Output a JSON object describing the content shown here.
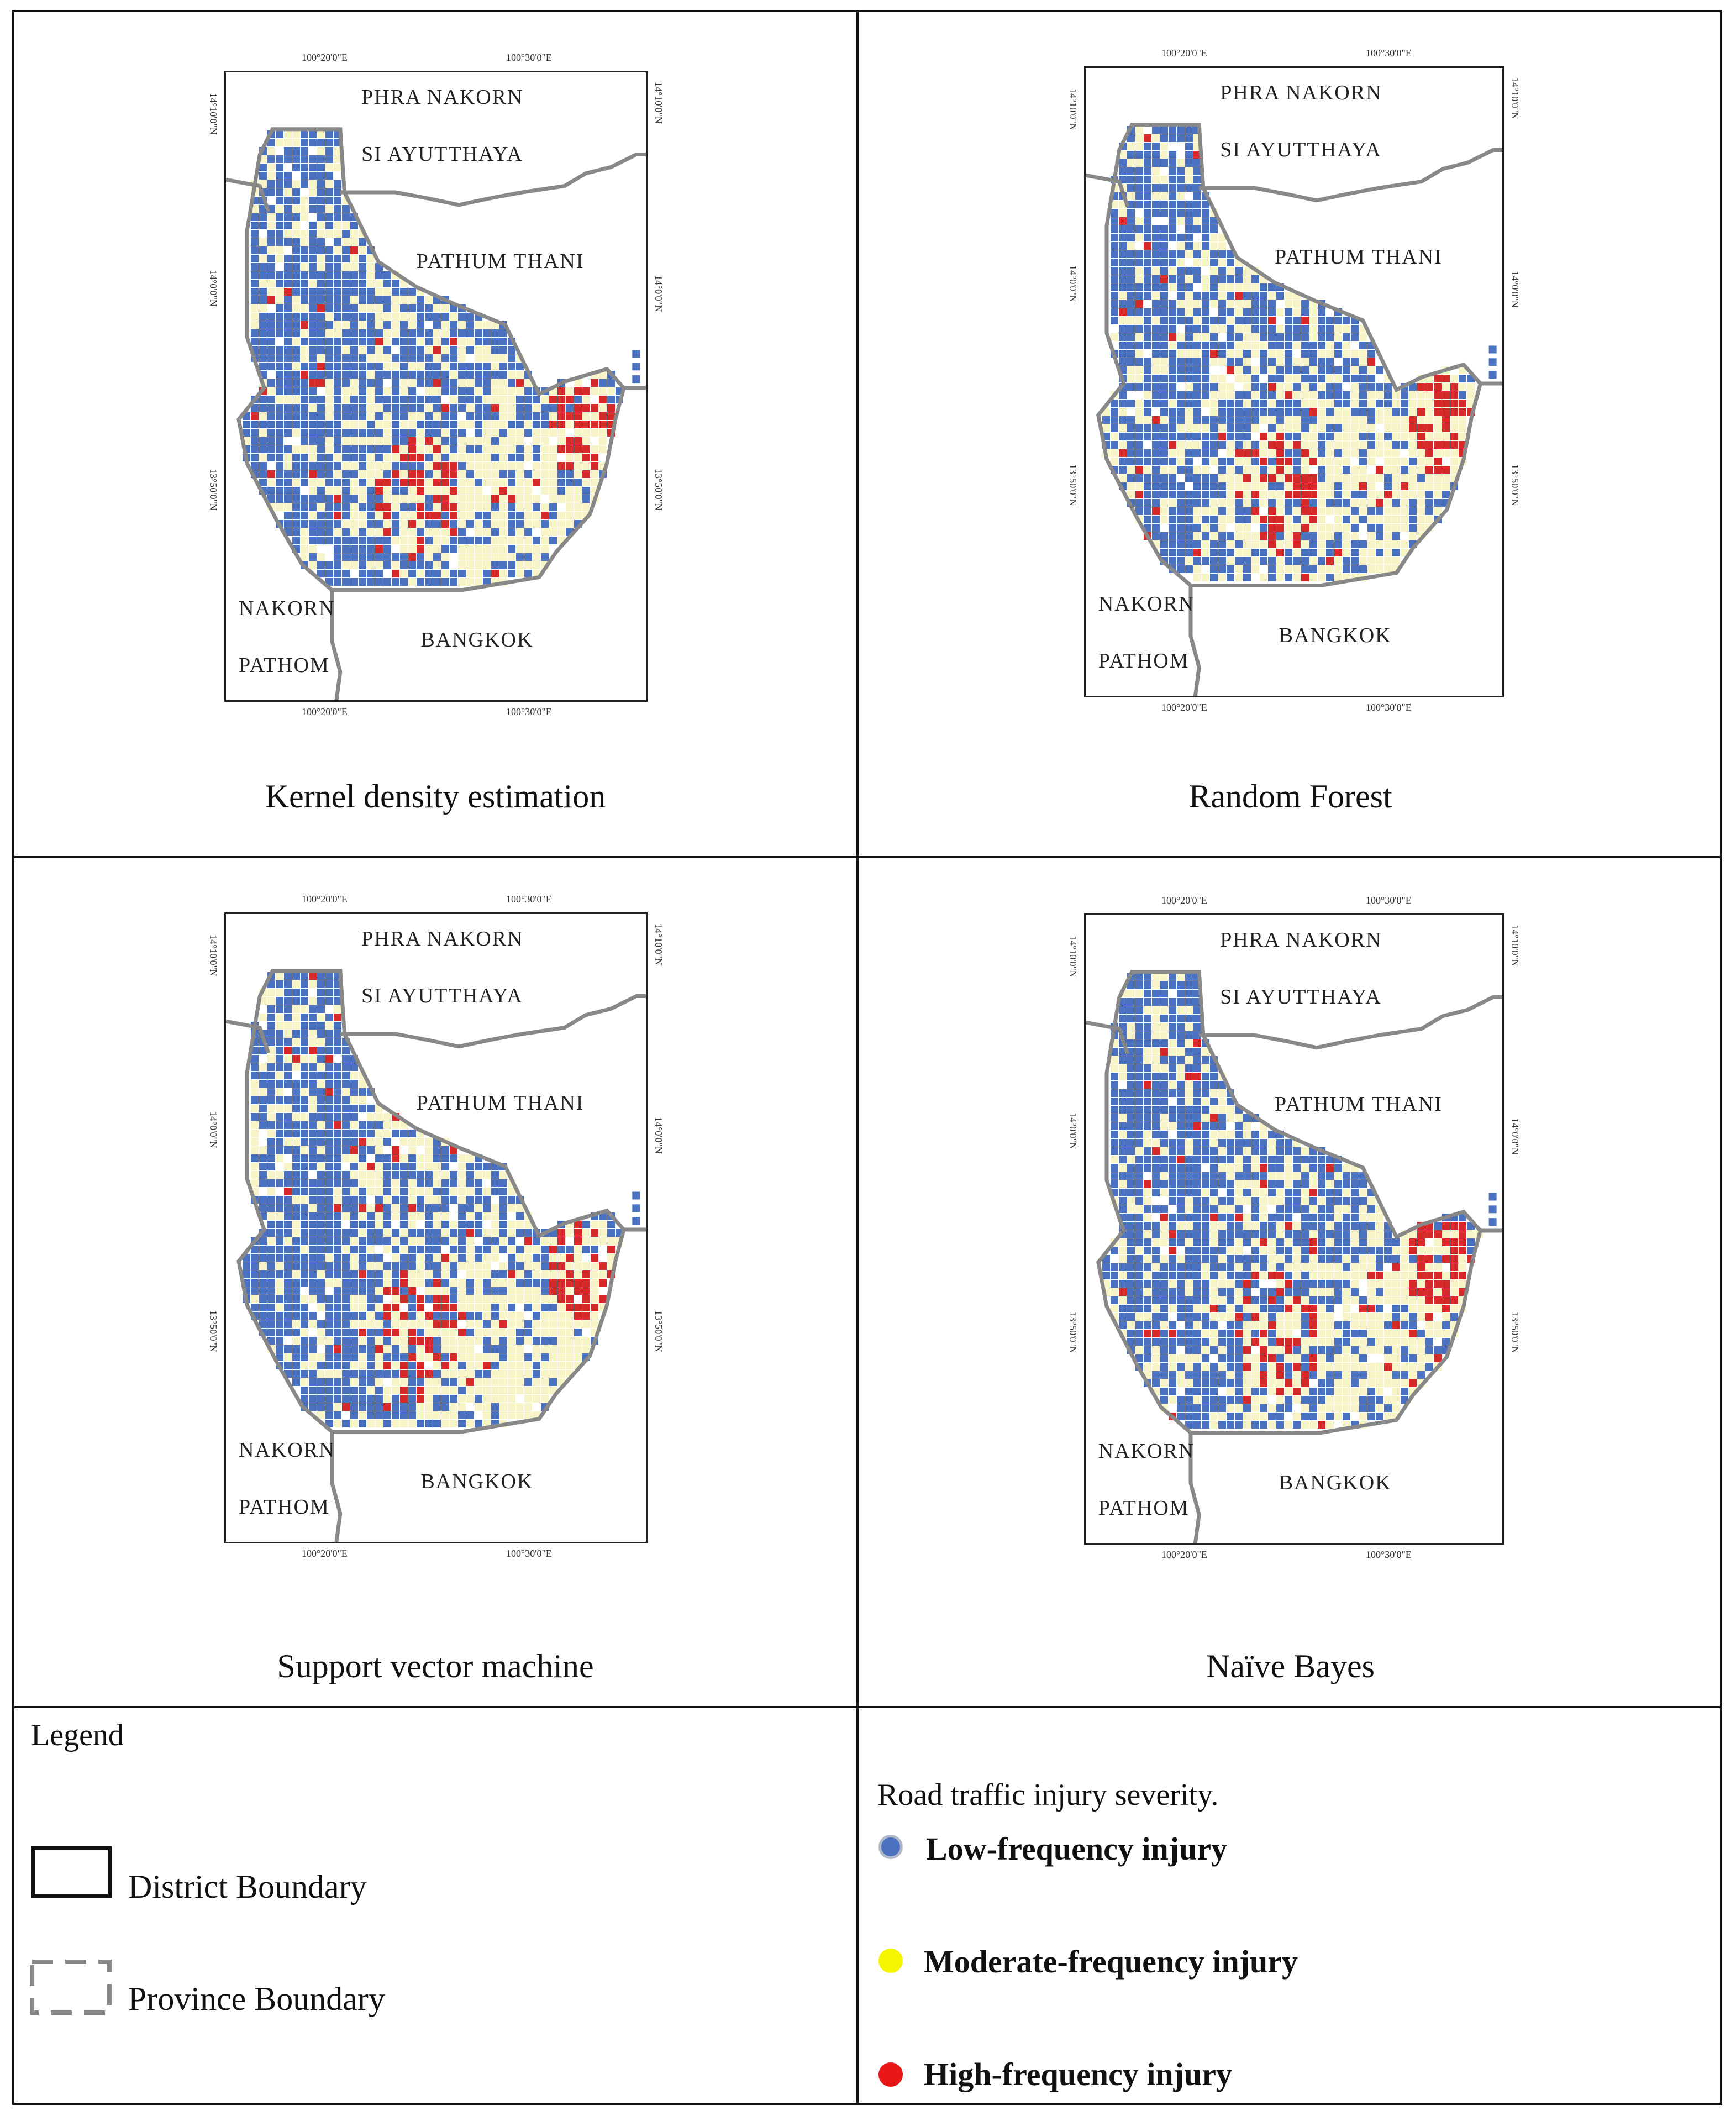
{
  "maps": [
    {
      "id": "kde",
      "caption": "Kernel density estimation",
      "labels": {
        "north_province_1": "PHRA NAKORN",
        "north_province_2": "SI AYUTTHAYA",
        "east_province": "PATHUM THANI",
        "south_province": "BANGKOK",
        "west_province_1": "NAKORN",
        "west_province_2": "PATHOM"
      },
      "coords": {
        "top_left": "100°20'0\"E",
        "top_right": "100°30'0\"E",
        "bottom_left": "100°20'0\"E",
        "bottom_right": "100°30'0\"E",
        "left_top": "14°10'0\"N",
        "left_mid": "14°0'0\"N",
        "left_bottom": "13°50'0\"N",
        "right_top": "14°10'0\"N",
        "right_mid": "14°0'0\"N",
        "right_bottom": "13°50'0\"N"
      }
    },
    {
      "id": "rf",
      "caption": "Random Forest",
      "labels": {
        "north_province_1": "PHRA NAKORN",
        "north_province_2": "SI AYUTTHAYA",
        "east_province": "PATHUM THANI",
        "south_province": "BANGKOK",
        "west_province_1": "NAKORN",
        "west_province_2": "PATHOM"
      },
      "coords": {
        "top_left": "100°20'0\"E",
        "top_right": "100°30'0\"E",
        "bottom_left": "100°20'0\"E",
        "bottom_right": "100°30'0\"E",
        "left_top": "14°10'0\"N",
        "left_mid": "14°0'0\"N",
        "left_bottom": "13°50'0\"N",
        "right_top": "14°10'0\"N",
        "right_mid": "14°0'0\"N",
        "right_bottom": "13°50'0\"N"
      }
    },
    {
      "id": "svm",
      "caption": "Support vector machine",
      "labels": {
        "north_province_1": "PHRA NAKORN",
        "north_province_2": "SI AYUTTHAYA",
        "east_province": "PATHUM THANI",
        "south_province": "BANGKOK",
        "west_province_1": "NAKORN",
        "west_province_2": "PATHOM"
      },
      "coords": {
        "top_left": "100°20'0\"E",
        "top_right": "100°30'0\"E",
        "bottom_left": "100°20'0\"E",
        "bottom_right": "100°30'0\"E",
        "left_top": "14°10'0\"N",
        "left_mid": "14°0'0\"N",
        "left_bottom": "13°50'0\"N",
        "right_top": "14°10'0\"N",
        "right_mid": "14°0'0\"N",
        "right_bottom": "13°50'0\"N"
      }
    },
    {
      "id": "nb",
      "caption": "Naïve Bayes",
      "labels": {
        "north_province_1": "PHRA NAKORN",
        "north_province_2": "SI AYUTTHAYA",
        "east_province": "PATHUM THANI",
        "south_province": "BANGKOK",
        "west_province_1": "NAKORN",
        "west_province_2": "PATHOM"
      },
      "coords": {
        "top_left": "100°20'0\"E",
        "top_right": "100°30'0\"E",
        "bottom_left": "100°20'0\"E",
        "bottom_right": "100°30'0\"E",
        "left_top": "14°10'0\"N",
        "left_mid": "14°0'0\"N",
        "left_bottom": "13°50'0\"N",
        "right_top": "14°10'0\"N",
        "right_mid": "14°0'0\"N",
        "right_bottom": "13°50'0\"N"
      }
    }
  ],
  "legend": {
    "title": "Legend",
    "district_boundary": "District Boundary",
    "province_boundary": "Province Boundary"
  },
  "severity": {
    "title": "Road traffic injury severity.",
    "items": [
      {
        "label": "Low-frequency injury",
        "color": "#4a72c0"
      },
      {
        "label": "Moderate-frequency injury",
        "color": "#f5f500"
      },
      {
        "label": "High-frequency injury",
        "color": "#e81818"
      }
    ]
  },
  "colors": {
    "low": "#4a72c0",
    "moderate": "#f7f5c8",
    "high": "#d62a2a",
    "boundary": "#888888"
  }
}
